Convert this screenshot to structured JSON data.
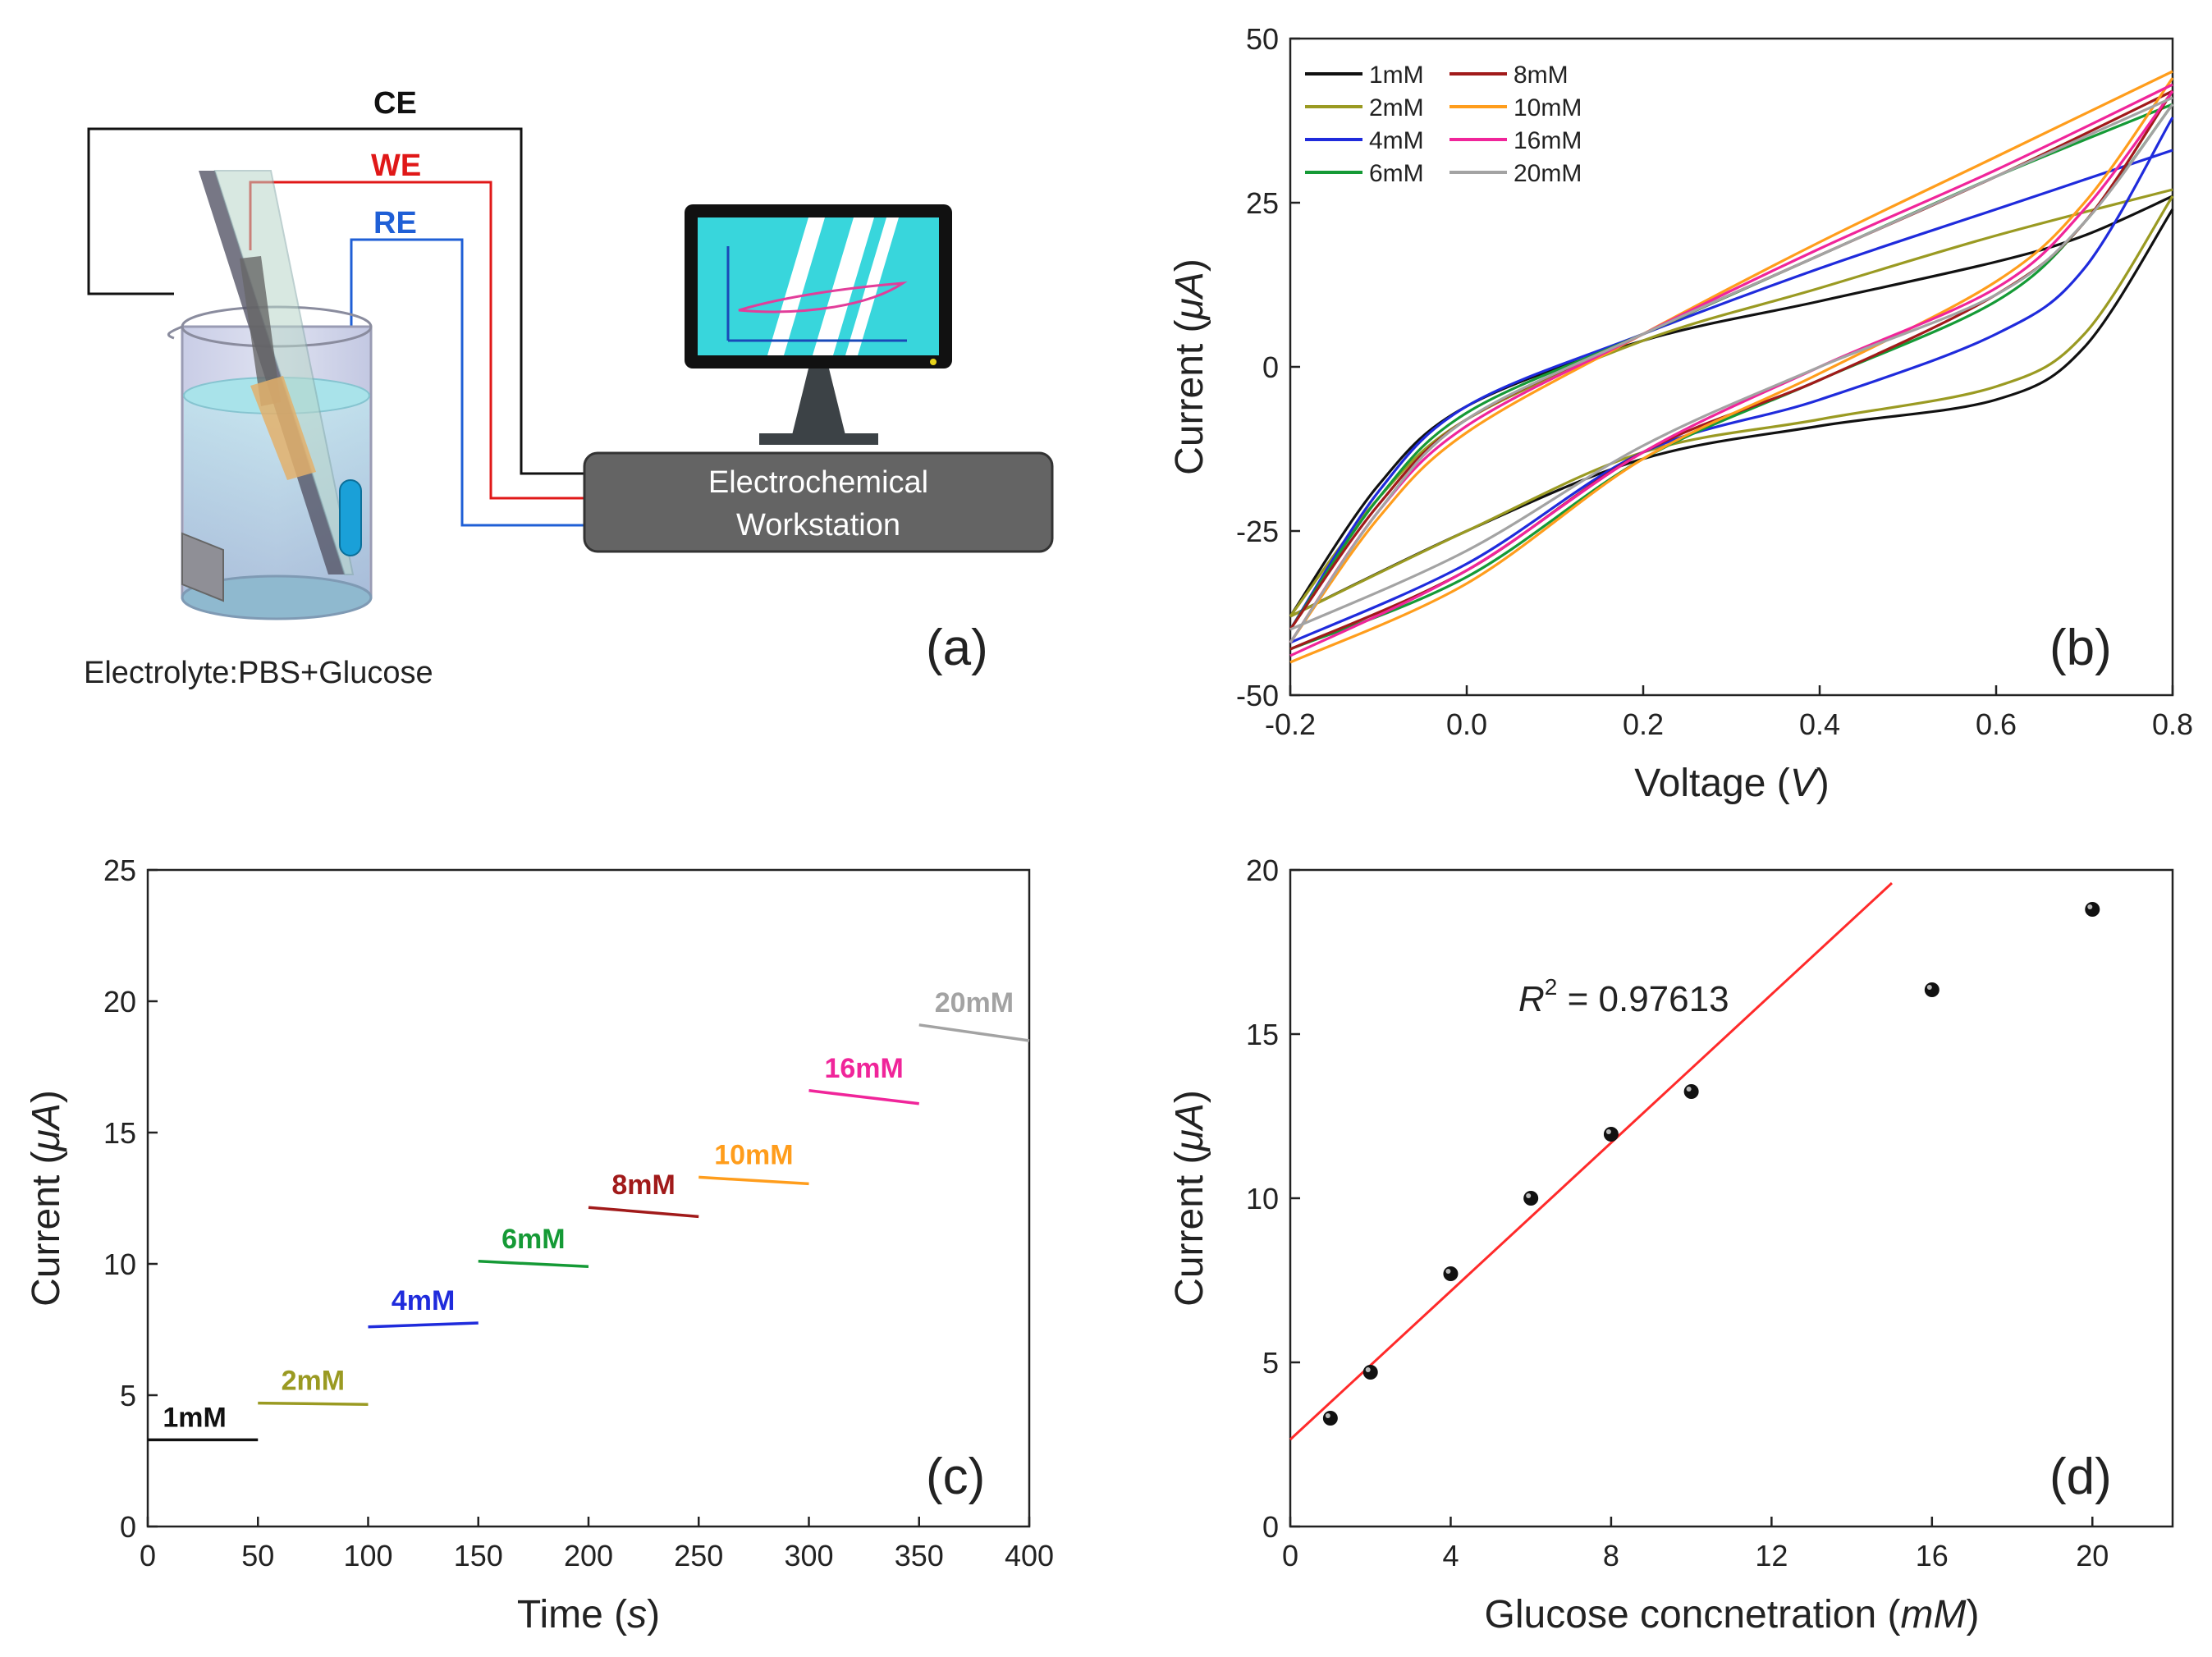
{
  "colors": {
    "c1": "#111111",
    "c2": "#9a9a22",
    "c4": "#1f2bdc",
    "c6": "#159a36",
    "c8": "#a11a1a",
    "c10": "#ff9d1c",
    "c16": "#f0259a",
    "c20": "#a3a3a3",
    "ce": "#111111",
    "we": "#e01818",
    "re": "#1f5fd6",
    "fit": "#ff2a2a",
    "screen": "#38d6dc",
    "workstation": "#646464"
  },
  "panel_a": {
    "label": "(a)",
    "ce": "CE",
    "we": "WE",
    "re": "RE",
    "workstation_line1": "Electrochemical",
    "workstation_line2": "Workstation",
    "electrolyte": "Electrolyte:PBS+Glucose"
  },
  "chart_data": [
    {
      "id": "b",
      "panel_label": "(b)",
      "type": "line",
      "title": "",
      "xlabel_main": "Voltage (",
      "xlabel_unit": "V",
      "xlabel_close": ")",
      "ylabel_main": "Current (",
      "ylabel_unit": "μA",
      "ylabel_close": ")",
      "xlim": [
        -0.2,
        0.8
      ],
      "ylim": [
        -50,
        50
      ],
      "xticks": [
        "-0.2",
        "0.0",
        "0.2",
        "0.4",
        "0.6",
        "0.8"
      ],
      "yticks": [
        "-50",
        "-25",
        "0",
        "25",
        "50"
      ],
      "legend_position": "top-left",
      "series": [
        {
          "name": "1mM",
          "color_key": "c1",
          "upper": [
            [
              -0.2,
              -38
            ],
            [
              -0.1,
              -18
            ],
            [
              0.0,
              -6
            ],
            [
              0.2,
              4
            ],
            [
              0.4,
              10
            ],
            [
              0.6,
              16
            ],
            [
              0.7,
              20
            ],
            [
              0.8,
              26
            ]
          ],
          "lower": [
            [
              -0.2,
              -38
            ],
            [
              0.0,
              -25
            ],
            [
              0.2,
              -14
            ],
            [
              0.4,
              -9
            ],
            [
              0.6,
              -5
            ],
            [
              0.7,
              3
            ],
            [
              0.8,
              24
            ]
          ]
        },
        {
          "name": "2mM",
          "color_key": "c2",
          "upper": [
            [
              -0.2,
              -38
            ],
            [
              -0.1,
              -20
            ],
            [
              0.0,
              -8
            ],
            [
              0.2,
              4
            ],
            [
              0.4,
              12
            ],
            [
              0.6,
              20
            ],
            [
              0.8,
              27
            ]
          ],
          "lower": [
            [
              -0.2,
              -38
            ],
            [
              0.0,
              -25
            ],
            [
              0.2,
              -13
            ],
            [
              0.4,
              -8
            ],
            [
              0.6,
              -3
            ],
            [
              0.7,
              5
            ],
            [
              0.8,
              26
            ]
          ]
        },
        {
          "name": "4mM",
          "color_key": "c4",
          "upper": [
            [
              -0.2,
              -40
            ],
            [
              -0.1,
              -19
            ],
            [
              0.0,
              -6
            ],
            [
              0.2,
              5
            ],
            [
              0.4,
              15
            ],
            [
              0.6,
              24
            ],
            [
              0.8,
              33
            ]
          ],
          "lower": [
            [
              -0.2,
              -42
            ],
            [
              0.0,
              -30
            ],
            [
              0.2,
              -13
            ],
            [
              0.4,
              -5
            ],
            [
              0.6,
              5
            ],
            [
              0.7,
              15
            ],
            [
              0.8,
              38
            ]
          ]
        },
        {
          "name": "6mM",
          "color_key": "c6",
          "upper": [
            [
              -0.2,
              -40
            ],
            [
              -0.1,
              -20
            ],
            [
              0.0,
              -7
            ],
            [
              0.2,
              5
            ],
            [
              0.4,
              17
            ],
            [
              0.6,
              29
            ],
            [
              0.8,
              40
            ]
          ],
          "lower": [
            [
              -0.2,
              -43
            ],
            [
              0.0,
              -32
            ],
            [
              0.2,
              -14
            ],
            [
              0.4,
              -2
            ],
            [
              0.6,
              10
            ],
            [
              0.7,
              22
            ],
            [
              0.8,
              40
            ]
          ]
        },
        {
          "name": "8mM",
          "color_key": "c8",
          "upper": [
            [
              -0.2,
              -40
            ],
            [
              -0.1,
              -21
            ],
            [
              0.0,
              -8
            ],
            [
              0.2,
              5
            ],
            [
              0.4,
              17
            ],
            [
              0.6,
              29
            ],
            [
              0.8,
              42
            ]
          ],
          "lower": [
            [
              -0.2,
              -43
            ],
            [
              0.0,
              -31
            ],
            [
              0.2,
              -13
            ],
            [
              0.4,
              -2
            ],
            [
              0.6,
              11
            ],
            [
              0.7,
              22
            ],
            [
              0.8,
              42
            ]
          ]
        },
        {
          "name": "10mM",
          "color_key": "c10",
          "upper": [
            [
              -0.2,
              -42
            ],
            [
              -0.1,
              -23
            ],
            [
              0.0,
              -10
            ],
            [
              0.2,
              5
            ],
            [
              0.4,
              19
            ],
            [
              0.6,
              32
            ],
            [
              0.8,
              45
            ]
          ],
          "lower": [
            [
              -0.2,
              -45
            ],
            [
              0.0,
              -33
            ],
            [
              0.2,
              -14
            ],
            [
              0.4,
              -1
            ],
            [
              0.6,
              13
            ],
            [
              0.7,
              25
            ],
            [
              0.8,
              44
            ]
          ]
        },
        {
          "name": "16mM",
          "color_key": "c16",
          "upper": [
            [
              -0.2,
              -42
            ],
            [
              -0.1,
              -22
            ],
            [
              0.0,
              -9
            ],
            [
              0.2,
              5
            ],
            [
              0.4,
              18
            ],
            [
              0.6,
              30
            ],
            [
              0.8,
              43
            ]
          ],
          "lower": [
            [
              -0.2,
              -44
            ],
            [
              0.0,
              -31
            ],
            [
              0.2,
              -13
            ],
            [
              0.4,
              0
            ],
            [
              0.6,
              12
            ],
            [
              0.7,
              24
            ],
            [
              0.8,
              42
            ]
          ]
        },
        {
          "name": "20mM",
          "color_key": "c20",
          "upper": [
            [
              -0.2,
              -42
            ],
            [
              -0.1,
              -22
            ],
            [
              0.0,
              -8
            ],
            [
              0.2,
              5
            ],
            [
              0.4,
              17
            ],
            [
              0.6,
              29
            ],
            [
              0.8,
              41
            ]
          ],
          "lower": [
            [
              -0.2,
              -40
            ],
            [
              0.0,
              -28
            ],
            [
              0.2,
              -12
            ],
            [
              0.4,
              0
            ],
            [
              0.6,
              11
            ],
            [
              0.7,
              22
            ],
            [
              0.8,
              40
            ]
          ]
        }
      ]
    },
    {
      "id": "c",
      "panel_label": "(c)",
      "type": "line",
      "title": "",
      "xlabel_main": "Time (",
      "xlabel_unit": "s",
      "xlabel_close": ")",
      "ylabel_main": "Current (",
      "ylabel_unit": "μA",
      "ylabel_close": ")",
      "xlim": [
        0,
        400
      ],
      "ylim": [
        0,
        25
      ],
      "xticks": [
        "0",
        "50",
        "100",
        "150",
        "200",
        "250",
        "300",
        "350",
        "400"
      ],
      "yticks": [
        "0",
        "5",
        "10",
        "15",
        "20",
        "25"
      ],
      "series": [
        {
          "name": "1mM",
          "color_key": "c1",
          "x": [
            0,
            50
          ],
          "y": [
            3.3,
            3.3
          ]
        },
        {
          "name": "2mM",
          "color_key": "c2",
          "x": [
            50,
            100
          ],
          "y": [
            4.7,
            4.65
          ]
        },
        {
          "name": "4mM",
          "color_key": "c4",
          "x": [
            100,
            150
          ],
          "y": [
            7.6,
            7.75
          ]
        },
        {
          "name": "6mM",
          "color_key": "c6",
          "x": [
            150,
            200
          ],
          "y": [
            10.1,
            9.9
          ]
        },
        {
          "name": "8mM",
          "color_key": "c8",
          "x": [
            200,
            250
          ],
          "y": [
            12.15,
            11.8
          ]
        },
        {
          "name": "10mM",
          "color_key": "c10",
          "x": [
            250,
            300
          ],
          "y": [
            13.3,
            13.05
          ]
        },
        {
          "name": "16mM",
          "color_key": "c16",
          "x": [
            300,
            350
          ],
          "y": [
            16.6,
            16.1
          ]
        },
        {
          "name": "20mM",
          "color_key": "c20",
          "x": [
            350,
            400
          ],
          "y": [
            19.1,
            18.5
          ]
        }
      ]
    },
    {
      "id": "d",
      "panel_label": "(d)",
      "type": "scatter",
      "title": "",
      "xlabel_main": "Glucose concnetration (",
      "xlabel_unit": "mM",
      "xlabel_close": ")",
      "ylabel_main": "Current (",
      "ylabel_unit": "μA",
      "ylabel_close": ")",
      "xlim": [
        0,
        22
      ],
      "ylim": [
        0,
        20
      ],
      "xticks": [
        "0",
        "4",
        "8",
        "12",
        "16",
        "20"
      ],
      "yticks": [
        "0",
        "5",
        "10",
        "15",
        "20"
      ],
      "r2_prefix": "R",
      "r2_sup": "2",
      "r2_text": " = 0.97613",
      "fit": {
        "x": [
          0,
          15
        ],
        "y": [
          2.65,
          19.6
        ]
      },
      "points": {
        "x": [
          1,
          2,
          4,
          6,
          8,
          10,
          16,
          20
        ],
        "y": [
          3.3,
          4.7,
          7.7,
          10.0,
          11.95,
          13.25,
          16.35,
          18.8
        ]
      }
    }
  ]
}
